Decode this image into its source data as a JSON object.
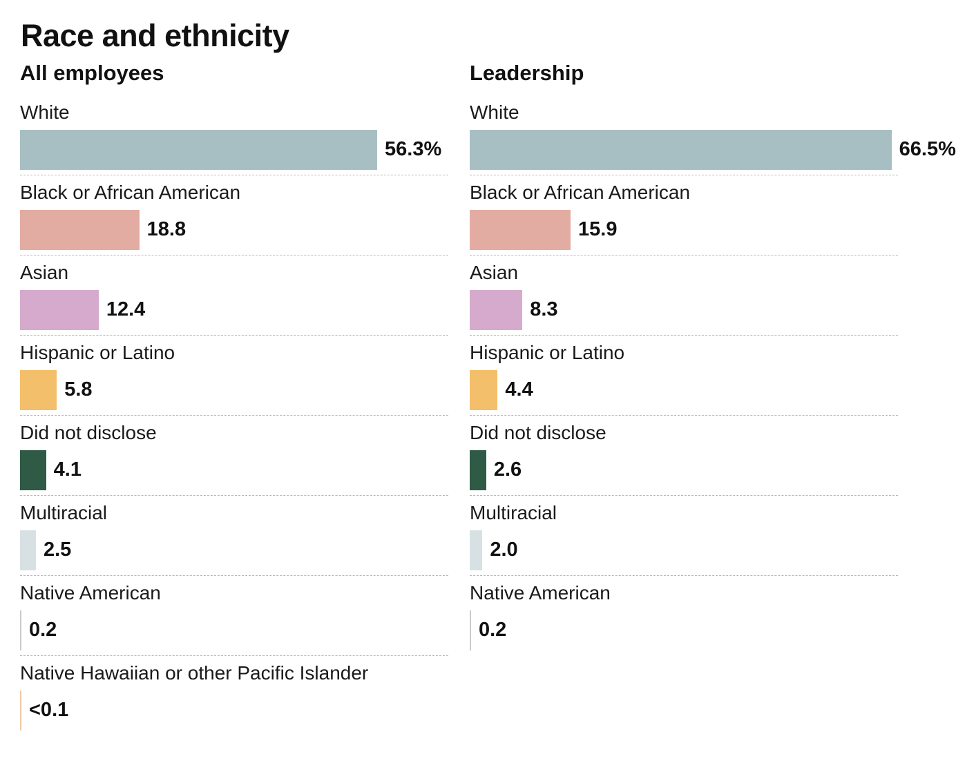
{
  "title": "Race and ethnicity",
  "colors": {
    "White": "#a7bfc3",
    "Black or African American": "#e3aca2",
    "Asian": "#d5aacc",
    "Hispanic or Latino": "#f3bf6a",
    "Did not disclose": "#2f5a45",
    "Multiracial": "#d7e1e4",
    "Native American": "#c9cccd",
    "Native Hawaiian or other Pacific Islander": "#f0c9a6"
  },
  "chart_data": [
    {
      "type": "bar",
      "title": "All employees",
      "unit": "%",
      "categories": [
        "White",
        "Black or African American",
        "Asian",
        "Hispanic or Latino",
        "Did not disclose",
        "Multiracial",
        "Native American",
        "Native Hawaiian or other Pacific Islander"
      ],
      "values": [
        56.3,
        18.8,
        12.4,
        5.8,
        4.1,
        2.5,
        0.2,
        0.05
      ],
      "value_labels": [
        "56.3%",
        "18.8",
        "12.4",
        "5.8",
        "4.1",
        "2.5",
        "0.2",
        "<0.1"
      ],
      "xlim": [
        0,
        70
      ]
    },
    {
      "type": "bar",
      "title": "Leadership",
      "unit": "%",
      "categories": [
        "White",
        "Black or African American",
        "Asian",
        "Hispanic or Latino",
        "Did not disclose",
        "Multiracial",
        "Native American"
      ],
      "values": [
        66.5,
        15.9,
        8.3,
        4.4,
        2.6,
        2.0,
        0.2
      ],
      "value_labels": [
        "66.5%",
        "15.9",
        "8.3",
        "4.4",
        "2.6",
        "2.0",
        "0.2"
      ],
      "xlim": [
        0,
        70
      ]
    }
  ]
}
